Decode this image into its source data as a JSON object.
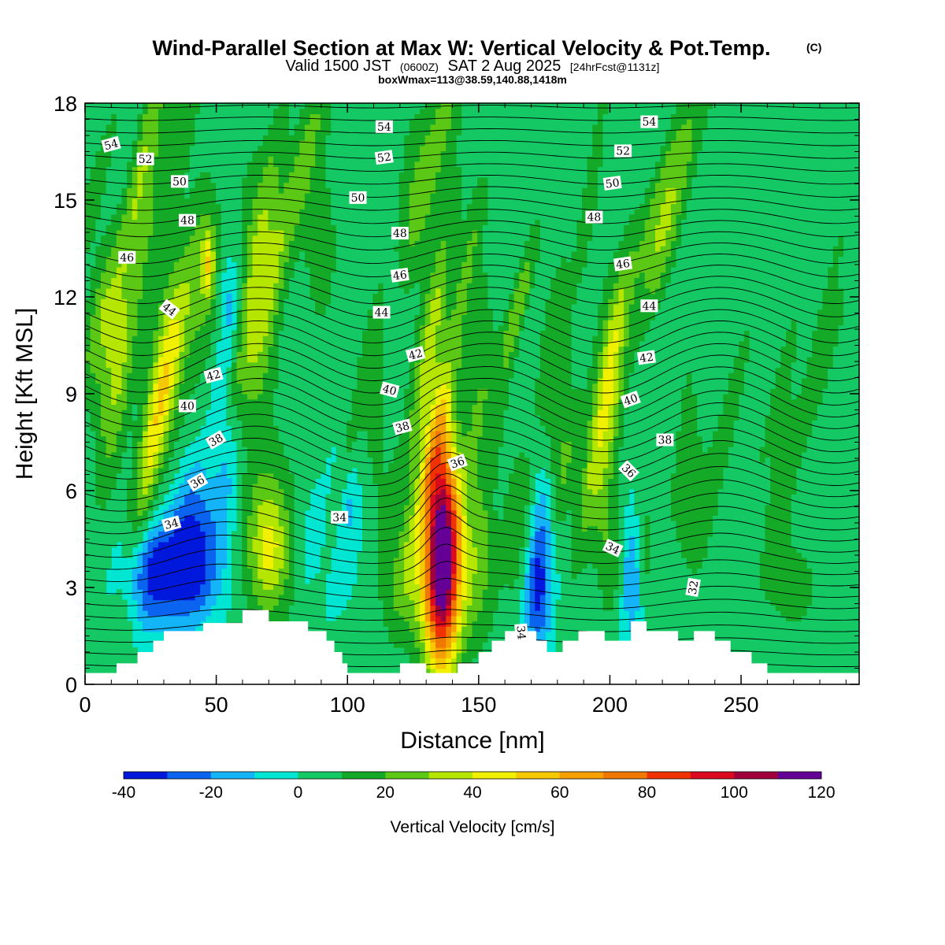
{
  "title": "Wind-Parallel Section at Max W: Vertical Velocity & Pot.Temp.",
  "title_mark": "(C)",
  "subtitle": {
    "valid": "Valid 1500 JST",
    "zulu": "(0600Z)",
    "date": "SAT 2 Aug 2025",
    "fcst": "[24hrFcst@1131z]"
  },
  "box_info": "boxWmax=113@38.59,140.88,1418m",
  "chart_data": {
    "type": "heatmap",
    "xlabel": "Distance [nm]",
    "ylabel": "Height [Kft MSL]",
    "xlim": [
      0,
      295
    ],
    "ylim": [
      0,
      18
    ],
    "x_ticks": [
      0,
      50,
      100,
      150,
      200,
      250
    ],
    "y_ticks": [
      0,
      3,
      6,
      9,
      12,
      15,
      18
    ],
    "colorbar": {
      "title": "Vertical Velocity [cm/s]",
      "levels": [
        -40,
        -30,
        -20,
        -10,
        0,
        10,
        20,
        30,
        40,
        50,
        60,
        70,
        80,
        90,
        100,
        110,
        120
      ],
      "labels": [
        -40,
        -20,
        0,
        20,
        40,
        60,
        80,
        100,
        120
      ],
      "colors": [
        "#0018dc",
        "#0a64f0",
        "#14b4f8",
        "#00e6d2",
        "#14c864",
        "#14aa28",
        "#5ac814",
        "#b4e600",
        "#f0f000",
        "#f5c800",
        "#f5a000",
        "#f07800",
        "#f03200",
        "#dc0a1e",
        "#a0003c",
        "#640096"
      ]
    },
    "background_color": "#00e6d2",
    "terrain": [
      [
        0,
        0.35
      ],
      [
        12,
        0.35
      ],
      [
        12,
        0.65
      ],
      [
        20,
        0.65
      ],
      [
        20,
        1.0
      ],
      [
        26,
        1.0
      ],
      [
        26,
        1.35
      ],
      [
        30,
        1.35
      ],
      [
        30,
        1.65
      ],
      [
        45,
        1.65
      ],
      [
        45,
        1.9
      ],
      [
        60,
        1.9
      ],
      [
        60,
        2.3
      ],
      [
        70,
        2.3
      ],
      [
        70,
        1.95
      ],
      [
        85,
        1.95
      ],
      [
        85,
        1.65
      ],
      [
        92,
        1.65
      ],
      [
        92,
        1.35
      ],
      [
        95,
        1.35
      ],
      [
        95,
        1.0
      ],
      [
        98,
        1.0
      ],
      [
        98,
        0.65
      ],
      [
        100,
        0.65
      ],
      [
        100,
        0.35
      ],
      [
        120,
        0.35
      ],
      [
        120,
        0.65
      ],
      [
        130,
        0.65
      ],
      [
        130,
        0.35
      ],
      [
        142,
        0.35
      ],
      [
        142,
        0.65
      ],
      [
        150,
        0.65
      ],
      [
        150,
        1.0
      ],
      [
        155,
        1.0
      ],
      [
        155,
        1.35
      ],
      [
        160,
        1.35
      ],
      [
        160,
        1.65
      ],
      [
        172,
        1.65
      ],
      [
        172,
        1.35
      ],
      [
        176,
        1.35
      ],
      [
        176,
        1.0
      ],
      [
        182,
        1.0
      ],
      [
        182,
        1.35
      ],
      [
        188,
        1.35
      ],
      [
        188,
        1.65
      ],
      [
        198,
        1.65
      ],
      [
        198,
        1.35
      ],
      [
        208,
        1.35
      ],
      [
        208,
        1.95
      ],
      [
        214,
        1.95
      ],
      [
        214,
        1.65
      ],
      [
        226,
        1.65
      ],
      [
        226,
        1.35
      ],
      [
        232,
        1.35
      ],
      [
        232,
        1.65
      ],
      [
        240,
        1.65
      ],
      [
        240,
        1.35
      ],
      [
        246,
        1.35
      ],
      [
        246,
        1.0
      ],
      [
        254,
        1.0
      ],
      [
        254,
        0.65
      ],
      [
        260,
        0.65
      ],
      [
        260,
        0.35
      ],
      [
        295,
        0.35
      ]
    ],
    "w_features": [
      {
        "x": 136,
        "y": 4.3,
        "sx": 4.5,
        "sy": 2.6,
        "w": 113
      },
      {
        "x": 136,
        "y": 2.8,
        "sx": 9,
        "sy": 2.0,
        "w": 18
      },
      {
        "x": 150,
        "y": 3.4,
        "sx": 6,
        "sy": 1.6,
        "w": 16
      },
      {
        "x": 125,
        "y": 3.0,
        "sx": 7,
        "sy": 1.4,
        "w": 14
      },
      {
        "x": 36,
        "y": 3.5,
        "sx": 9,
        "sy": 1.1,
        "w": -42
      },
      {
        "x": 22,
        "y": 3.4,
        "sx": 6,
        "sy": 1.2,
        "w": -22
      },
      {
        "x": 42,
        "y": 5.3,
        "sx": 7,
        "sy": 1.4,
        "w": -26
      },
      {
        "x": 53,
        "y": 7.8,
        "sx": 4,
        "sy": 2.0,
        "w": -22
      },
      {
        "x": 55,
        "y": 11.8,
        "sx": 3,
        "sy": 1.2,
        "w": -16
      },
      {
        "x": 172,
        "y": 2.9,
        "sx": 3.5,
        "sy": 1.3,
        "w": -34
      },
      {
        "x": 175,
        "y": 5.0,
        "sx": 3,
        "sy": 1.4,
        "w": -18
      },
      {
        "x": 209,
        "y": 3.5,
        "sx": 3,
        "sy": 1.5,
        "w": -32
      },
      {
        "x": 88,
        "y": 4.3,
        "sx": 4,
        "sy": 1.1,
        "w": -14
      },
      {
        "x": 100,
        "y": 5.5,
        "sx": 4,
        "sy": 1.2,
        "w": -13
      },
      {
        "x": 70,
        "y": 4.2,
        "sx": 5,
        "sy": 1.3,
        "w": 28
      },
      {
        "x": 70,
        "y": 4.8,
        "sx": 10,
        "sy": 2.5,
        "w": 17
      },
      {
        "x": 9,
        "y": 10.5,
        "sx": 6,
        "sy": 2.5,
        "w": 22
      },
      {
        "x": 32,
        "y": 9.5,
        "sx": 6,
        "sy": 3.0,
        "w": 18
      },
      {
        "x": 46,
        "y": 12.5,
        "sx": 5,
        "sy": 2.5,
        "w": 20
      },
      {
        "x": 47,
        "y": 13.0,
        "sx": 1.5,
        "sy": 0.7,
        "w": 30
      },
      {
        "x": 65,
        "y": 14.0,
        "sx": 6,
        "sy": 2.5,
        "w": 16
      },
      {
        "x": 90,
        "y": 13.5,
        "sx": 6,
        "sy": 2.5,
        "w": 14
      },
      {
        "x": 150,
        "y": 10.0,
        "sx": 5,
        "sy": 4.0,
        "w": 13
      },
      {
        "x": 200,
        "y": 10.0,
        "sx": 5,
        "sy": 3.0,
        "w": 14
      },
      {
        "x": 212,
        "y": 4.0,
        "sx": 3.5,
        "sy": 1.6,
        "w": 22
      },
      {
        "x": 200,
        "y": 4.0,
        "sx": 3.5,
        "sy": 1.6,
        "w": 18
      },
      {
        "x": 230,
        "y": 5.5,
        "sx": 6,
        "sy": 1.5,
        "w": 14
      },
      {
        "x": 270,
        "y": 3.0,
        "sx": 12,
        "sy": 1.8,
        "w": 12
      },
      {
        "x": 165,
        "y": 4.8,
        "sx": 4,
        "sy": 1.8,
        "w": 16
      },
      {
        "x": 180,
        "y": 8.0,
        "sx": 4,
        "sy": 2.5,
        "w": 12
      },
      {
        "x": 110,
        "y": 8.5,
        "sx": 5,
        "sy": 3.5,
        "w": 12
      },
      {
        "x": 125,
        "y": 15.5,
        "sx": 5,
        "sy": 2.5,
        "w": 12
      },
      {
        "x": 230,
        "y": 9.0,
        "sx": 5,
        "sy": 2.5,
        "w": 10
      }
    ],
    "theta_labels": [
      {
        "text": "54",
        "x": 10,
        "y": 16.7,
        "rot": -15
      },
      {
        "text": "52",
        "x": 23,
        "y": 16.25,
        "rot": 0
      },
      {
        "text": "50",
        "x": 36,
        "y": 15.55,
        "rot": 0
      },
      {
        "text": "48",
        "x": 39,
        "y": 14.35,
        "rot": 0
      },
      {
        "text": "46",
        "x": 16,
        "y": 13.2,
        "rot": 0
      },
      {
        "text": "44",
        "x": 32,
        "y": 11.6,
        "rot": 38
      },
      {
        "text": "42",
        "x": 49,
        "y": 9.55,
        "rot": -15
      },
      {
        "text": "40",
        "x": 39,
        "y": 8.6,
        "rot": 0
      },
      {
        "text": "38",
        "x": 50,
        "y": 7.55,
        "rot": -30
      },
      {
        "text": "36",
        "x": 43,
        "y": 6.25,
        "rot": -30
      },
      {
        "text": "34",
        "x": 33,
        "y": 4.95,
        "rot": -15
      },
      {
        "text": "54",
        "x": 114,
        "y": 17.25,
        "rot": 0
      },
      {
        "text": "52",
        "x": 114,
        "y": 16.3,
        "rot": -8
      },
      {
        "text": "50",
        "x": 104,
        "y": 15.05,
        "rot": 0
      },
      {
        "text": "48",
        "x": 120,
        "y": 13.95,
        "rot": 0
      },
      {
        "text": "46",
        "x": 120,
        "y": 12.65,
        "rot": -8
      },
      {
        "text": "44",
        "x": 113,
        "y": 11.5,
        "rot": 0
      },
      {
        "text": "42",
        "x": 126,
        "y": 10.2,
        "rot": -15
      },
      {
        "text": "40",
        "x": 116,
        "y": 9.1,
        "rot": 15
      },
      {
        "text": "38",
        "x": 121,
        "y": 7.95,
        "rot": -15
      },
      {
        "text": "36",
        "x": 142,
        "y": 6.85,
        "rot": -20
      },
      {
        "text": "34",
        "x": 97,
        "y": 5.15,
        "rot": 0
      },
      {
        "text": "34",
        "x": 166,
        "y": 1.6,
        "rot": 85
      },
      {
        "text": "54",
        "x": 215,
        "y": 17.4,
        "rot": 0
      },
      {
        "text": "52",
        "x": 205,
        "y": 16.5,
        "rot": 0
      },
      {
        "text": "50",
        "x": 201,
        "y": 15.5,
        "rot": -8
      },
      {
        "text": "48",
        "x": 194,
        "y": 14.45,
        "rot": 0
      },
      {
        "text": "46",
        "x": 205,
        "y": 13.0,
        "rot": -8
      },
      {
        "text": "44",
        "x": 215,
        "y": 11.7,
        "rot": 0
      },
      {
        "text": "42",
        "x": 214,
        "y": 10.1,
        "rot": -8
      },
      {
        "text": "40",
        "x": 208,
        "y": 8.8,
        "rot": -20
      },
      {
        "text": "38",
        "x": 221,
        "y": 7.55,
        "rot": 0
      },
      {
        "text": "36",
        "x": 207,
        "y": 6.6,
        "rot": 45
      },
      {
        "text": "34",
        "x": 201,
        "y": 4.2,
        "rot": 25
      },
      {
        "text": "32",
        "x": 232,
        "y": 3.0,
        "rot": -80
      }
    ]
  }
}
